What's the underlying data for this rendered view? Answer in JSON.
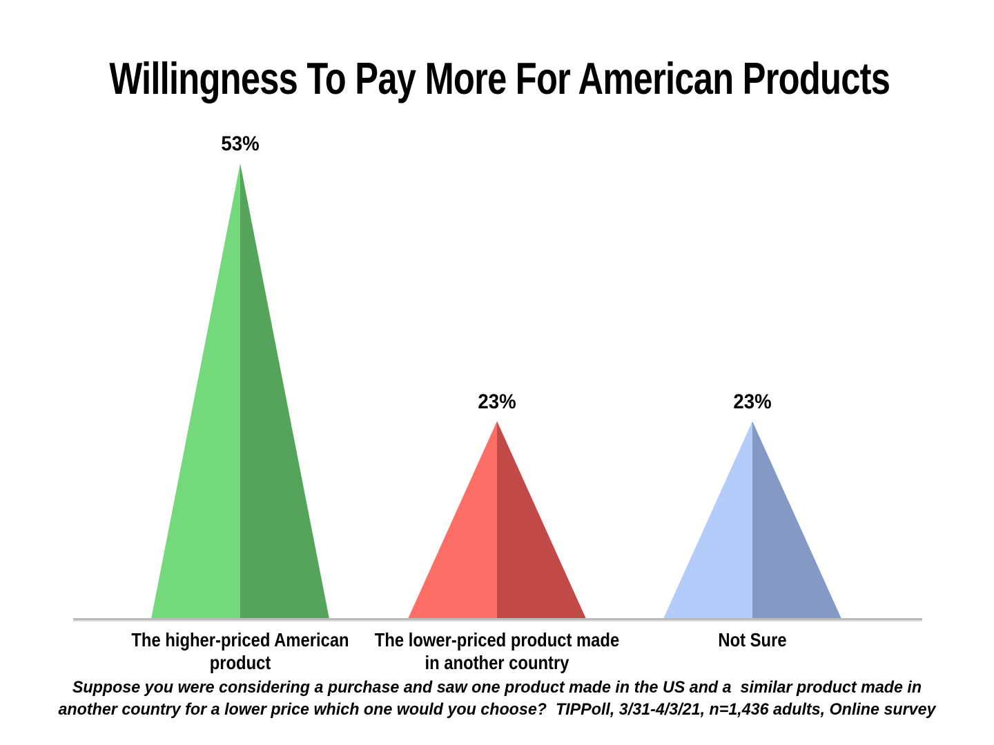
{
  "chart_data": {
    "type": "bar",
    "variant": "triangle-pyramid",
    "title": "Willingness To Pay More For American Products",
    "categories": [
      "The higher-priced American product",
      "The lower-priced product made in another country",
      "Not Sure"
    ],
    "category_labels": [
      "The higher-priced American\nproduct",
      "The lower-priced product made\nin another country",
      "Not Sure"
    ],
    "values": [
      53,
      23,
      23
    ],
    "value_labels": [
      "53%",
      "23%",
      "23%"
    ],
    "unit": "%",
    "ylim": [
      0,
      53
    ],
    "grid": false,
    "legend": "none",
    "value_label_position": "above-apex",
    "series_colors": [
      {
        "light": "#73d97a",
        "dark": "#56a35c"
      },
      {
        "light": "#fc6e66",
        "dark": "#c04a47"
      },
      {
        "light": "#b4ccfa",
        "dark": "#8499c3"
      }
    ],
    "baseline_color": "#bcbcbf",
    "baseline_shadow_color": "#dcdcde",
    "background_color": "#ffffff",
    "text_color": "#000000",
    "footnote": "Suppose you were considering a purchase and saw one product made in the US and a  similar product made in\nanother country for a lower price which one would you choose?  TIPPoll, 3/31-4/3/21, n=1,436 adults, Online survey"
  }
}
